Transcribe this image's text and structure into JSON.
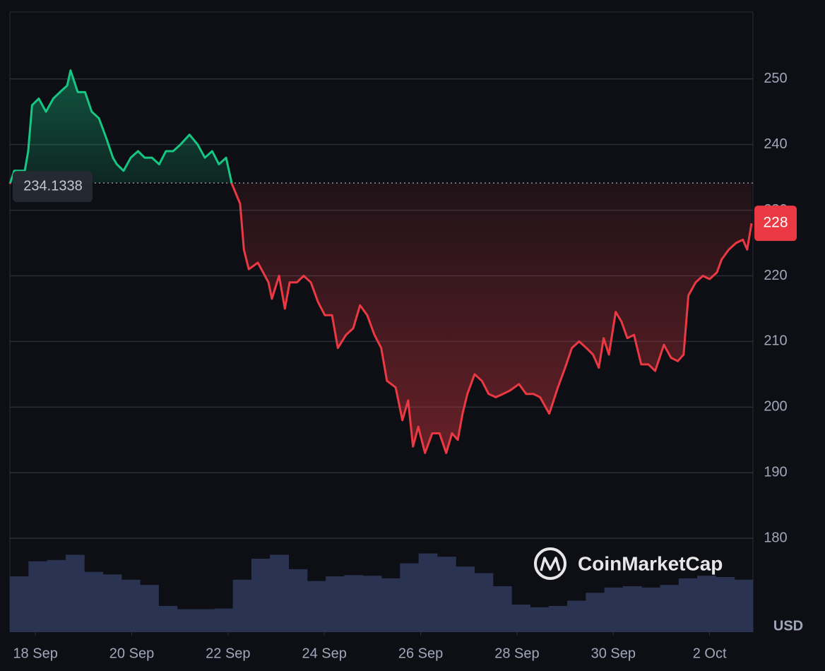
{
  "chart_data": {
    "type": "line",
    "x": [
      -0.53,
      -0.44,
      -0.22,
      -0.15,
      -0.07,
      0.07,
      0.22,
      0.37,
      0.51,
      0.66,
      0.73,
      0.88,
      1.03,
      1.17,
      1.32,
      1.47,
      1.61,
      1.69,
      1.83,
      1.98,
      2.13,
      2.27,
      2.42,
      2.57,
      2.71,
      2.86,
      3.01,
      3.2,
      3.37,
      3.52,
      3.67,
      3.81,
      3.96,
      4.08,
      4.25,
      4.33,
      4.43,
      4.62,
      4.84,
      4.91,
      5.06,
      5.18,
      5.28,
      5.43,
      5.57,
      5.72,
      5.87,
      6.01,
      6.16,
      6.28,
      6.45,
      6.6,
      6.74,
      6.89,
      7.04,
      7.18,
      7.3,
      7.48,
      7.62,
      7.74,
      7.84,
      7.95,
      8.09,
      8.24,
      8.39,
      8.53,
      8.65,
      8.77,
      8.87,
      8.97,
      9.12,
      9.27,
      9.41,
      9.56,
      9.71,
      9.85,
      10.04,
      10.19,
      10.34,
      10.48,
      10.67,
      10.85,
      11.0,
      11.14,
      11.29,
      11.44,
      11.58,
      11.7,
      11.8,
      11.91,
      12.05,
      12.17,
      12.29,
      12.43,
      12.58,
      12.73,
      12.87,
      13.05,
      13.2,
      13.34,
      13.46,
      13.56,
      13.71,
      13.86,
      14.0,
      14.15,
      14.25,
      14.4,
      14.55,
      14.69,
      14.78,
      14.87
    ],
    "values": [
      234,
      236,
      236,
      239,
      246,
      247,
      245,
      247,
      248,
      249,
      251.3,
      248,
      248,
      245,
      244,
      241,
      238,
      237,
      236,
      238,
      239,
      238,
      238,
      237,
      239,
      239,
      240,
      241.5,
      240,
      238,
      239,
      237,
      238,
      234,
      231,
      224,
      221,
      222,
      219,
      216.5,
      220,
      215,
      219,
      219,
      220,
      219,
      216,
      214,
      214,
      209,
      211,
      212,
      215.5,
      214,
      211,
      209,
      204,
      203,
      198,
      201,
      194,
      197,
      193,
      196,
      196,
      193,
      196,
      195,
      199,
      202,
      205,
      204,
      202,
      201.5,
      202,
      202.5,
      203.5,
      202,
      202,
      201.5,
      199,
      203,
      206,
      209,
      210,
      209,
      208,
      206,
      210.5,
      208,
      214.5,
      213,
      210.5,
      211,
      206.5,
      206.5,
      205.5,
      209.5,
      207.5,
      207,
      208,
      217,
      219,
      220,
      219.5,
      220.5,
      222.5,
      224,
      225,
      225.5,
      224,
      228
    ],
    "color_up": "#16c784",
    "color_down": "#ea3943",
    "baseline": 234.1338,
    "current_price": 228,
    "currency": "USD",
    "watermark": "CoinMarketCap",
    "volume": {
      "color": "#2b3352",
      "vlim": [
        0,
        140
      ],
      "values": [
        85,
        108,
        110,
        118,
        92,
        88,
        80,
        72,
        40,
        35,
        35,
        36,
        80,
        112,
        118,
        96,
        78,
        85,
        87,
        86,
        82,
        105,
        120,
        115,
        100,
        90,
        70,
        42,
        38,
        40,
        48,
        60,
        68,
        70,
        68,
        72,
        82,
        86,
        84,
        80
      ]
    },
    "xlim": [
      -0.53,
      14.9
    ],
    "xticks": [
      {
        "value": 0,
        "label": "18 Sep"
      },
      {
        "value": 2,
        "label": "20 Sep"
      },
      {
        "value": 4,
        "label": "22 Sep"
      },
      {
        "value": 6,
        "label": "24 Sep"
      },
      {
        "value": 8,
        "label": "26 Sep"
      },
      {
        "value": 10,
        "label": "28 Sep"
      },
      {
        "value": 12,
        "label": "30 Sep"
      },
      {
        "value": 14,
        "label": "2 Oct"
      }
    ],
    "ylim": [
      165.7,
      260.2
    ],
    "yticks": [
      180,
      190,
      200,
      210,
      220,
      230,
      240,
      250
    ],
    "grid": true
  }
}
